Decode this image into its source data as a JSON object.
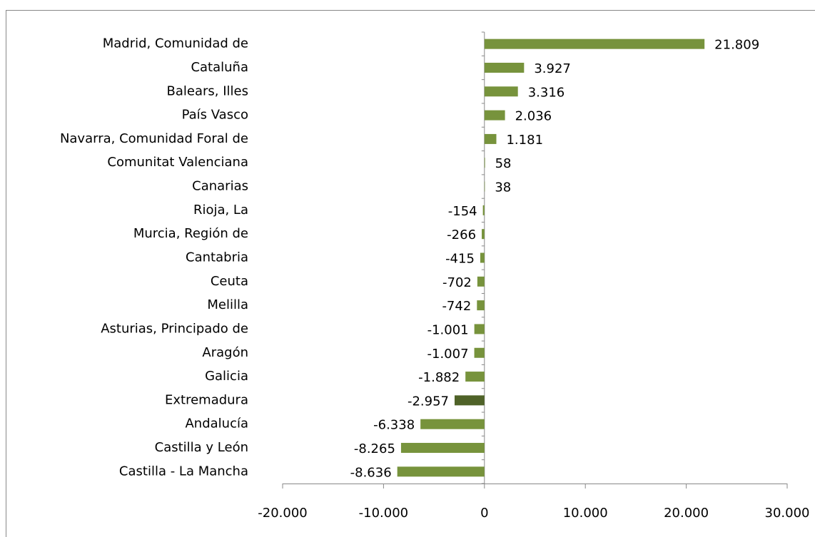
{
  "chart_data": {
    "type": "hbar",
    "categories": [
      "Madrid, Comunidad de",
      "Cataluña",
      "Balears, Illes",
      "País Vasco",
      "Navarra, Comunidad Foral de",
      "Comunitat Valenciana",
      "Canarias",
      "Rioja, La",
      "Murcia, Región de",
      "Cantabria",
      "Ceuta",
      "Melilla",
      "Asturias, Principado de",
      "Aragón",
      "Galicia",
      "Extremadura",
      "Andalucía",
      "Castilla y León",
      "Castilla - La Mancha"
    ],
    "values": [
      21809,
      3927,
      3316,
      2036,
      1181,
      58,
      38,
      -154,
      -266,
      -415,
      -702,
      -742,
      -1001,
      -1007,
      -1882,
      -2957,
      -6338,
      -8265,
      -8636
    ],
    "value_labels": [
      "21.809",
      "3.927",
      "3.316",
      "2.036",
      "1.181",
      "58",
      "38",
      "-154",
      "-266",
      "-415",
      "-702",
      "-742",
      "-1.001",
      "-1.007",
      "-1.882",
      "-2.957",
      "-6.338",
      "-8.265",
      "-8.636"
    ],
    "colors": [
      "#77933c",
      "#77933c",
      "#77933c",
      "#77933c",
      "#77933c",
      "#77933c",
      "#77933c",
      "#77933c",
      "#77933c",
      "#77933c",
      "#77933c",
      "#77933c",
      "#77933c",
      "#77933c",
      "#77933c",
      "#4f6228",
      "#77933c",
      "#77933c",
      "#77933c"
    ],
    "xlim": [
      -20000,
      30000
    ],
    "xticks": [
      {
        "value": -20000,
        "label": "-20.000"
      },
      {
        "value": -10000,
        "label": "-10.000"
      },
      0,
      {
        "value": 10000,
        "label": "10.000"
      },
      {
        "value": 20000,
        "label": "20.000"
      },
      {
        "value": 30000,
        "label": "30.000"
      }
    ]
  }
}
